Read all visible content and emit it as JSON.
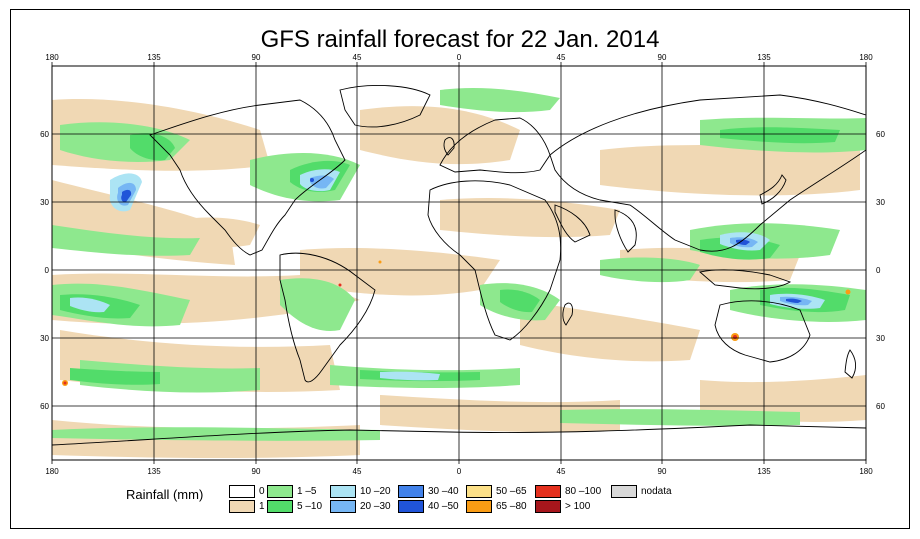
{
  "title": "GFS rainfall forecast for 22 Jan. 2014",
  "legend": {
    "label": "Rainfall (mm)",
    "items": [
      {
        "label": "0",
        "color": "#ffffff"
      },
      {
        "label": "1",
        "color": "#f0d8b4"
      },
      {
        "label": "1 –5",
        "color": "#8ee88e"
      },
      {
        "label": "5 –10",
        "color": "#52dc6a"
      },
      {
        "label": "10 –20",
        "color": "#ace4f4"
      },
      {
        "label": "20 –30",
        "color": "#76b6f4"
      },
      {
        "label": "30 –40",
        "color": "#4282ea"
      },
      {
        "label": "40 –50",
        "color": "#2054d8"
      },
      {
        "label": "50 –65",
        "color": "#fce088"
      },
      {
        "label": "65 –80",
        "color": "#fa9c14"
      },
      {
        "label": "80 –100",
        "color": "#e4301e"
      },
      {
        "label": "> 100",
        "color": "#a6161c"
      },
      {
        "label": "nodata",
        "color": "#d8d8d8"
      }
    ]
  },
  "axes": {
    "lon_ticks": [
      "180",
      "135",
      "90",
      "45",
      "0",
      "45",
      "90",
      "135",
      "180"
    ],
    "lat_ticks": [
      "60",
      "30",
      "0",
      "30",
      "60"
    ]
  },
  "colors": {
    "land_outline": "#000000",
    "grid": "#000000",
    "ocean": "#ffffff"
  }
}
